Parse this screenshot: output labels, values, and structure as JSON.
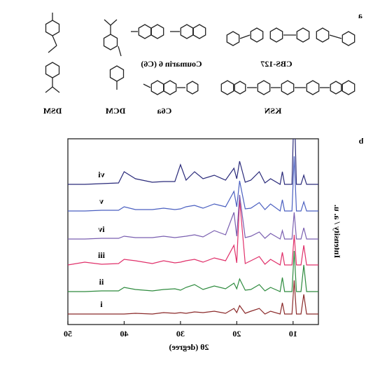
{
  "panel_a": {
    "label": "a",
    "compounds": [
      "DSM",
      "DCM",
      "Coumarin 6 (C6)",
      "C6a",
      "CBS-127",
      "KSN"
    ]
  },
  "chart_data": {
    "type": "line",
    "panel_label": "b",
    "xlabel": "2θ (degree)",
    "ylabel": "Intensity / a. u.",
    "x": [
      5.5,
      7.6,
      8.1,
      8.6,
      9.4,
      9.8,
      10.2,
      11.5,
      11.9,
      12.3,
      14,
      15,
      16,
      17.5,
      18.5,
      19.5,
      20,
      20.5,
      22,
      24,
      26,
      27.5,
      29,
      30,
      31,
      33,
      35,
      38,
      40,
      41,
      44,
      47,
      50
    ],
    "series": [
      {
        "name": "i",
        "color": "#8b2a2a",
        "values": [
          2,
          2,
          30,
          2,
          2,
          50,
          2,
          2,
          18,
          2,
          6,
          2,
          10,
          6,
          3,
          14,
          4,
          10,
          3,
          6,
          4,
          5,
          3,
          4,
          3,
          4,
          2,
          3,
          2,
          2,
          2,
          2,
          2
        ]
      },
      {
        "name": "ii",
        "color": "#2e8b3e",
        "values": [
          2,
          2,
          40,
          2,
          2,
          60,
          2,
          2,
          22,
          2,
          8,
          3,
          12,
          5,
          4,
          20,
          6,
          14,
          6,
          10,
          5,
          12,
          8,
          4,
          6,
          5,
          3,
          5,
          8,
          3,
          3,
          2,
          2
        ]
      },
      {
        "name": "iii",
        "color": "#e0306a",
        "values": [
          2,
          2,
          30,
          2,
          2,
          45,
          2,
          2,
          20,
          2,
          10,
          3,
          14,
          8,
          4,
          95,
          5,
          30,
          8,
          12,
          6,
          10,
          8,
          6,
          5,
          8,
          4,
          8,
          10,
          4,
          3,
          6,
          2
        ]
      },
      {
        "name": "iv",
        "color": "#7a5fb0",
        "values": [
          2,
          2,
          18,
          2,
          2,
          40,
          2,
          2,
          14,
          2,
          10,
          3,
          12,
          6,
          4,
          65,
          6,
          40,
          8,
          14,
          5,
          8,
          6,
          5,
          4,
          6,
          4,
          4,
          6,
          3,
          3,
          2,
          2
        ]
      },
      {
        "name": "v",
        "color": "#4a5fc0",
        "values": [
          2,
          2,
          15,
          2,
          2,
          80,
          2,
          2,
          18,
          2,
          12,
          4,
          14,
          6,
          5,
          45,
          8,
          30,
          8,
          12,
          6,
          10,
          8,
          5,
          4,
          6,
          4,
          4,
          8,
          3,
          3,
          2,
          2
        ]
      },
      {
        "name": "vi",
        "color": "#2a2a7a",
        "values": [
          2,
          2,
          15,
          2,
          2,
          120,
          2,
          2,
          20,
          2,
          10,
          4,
          20,
          8,
          5,
          35,
          10,
          25,
          8,
          15,
          10,
          20,
          8,
          30,
          6,
          6,
          5,
          10,
          20,
          4,
          3,
          2,
          2
        ]
      }
    ],
    "xlim": [
      5.5,
      50
    ],
    "xticks": [
      10,
      20,
      30,
      40,
      50
    ]
  }
}
